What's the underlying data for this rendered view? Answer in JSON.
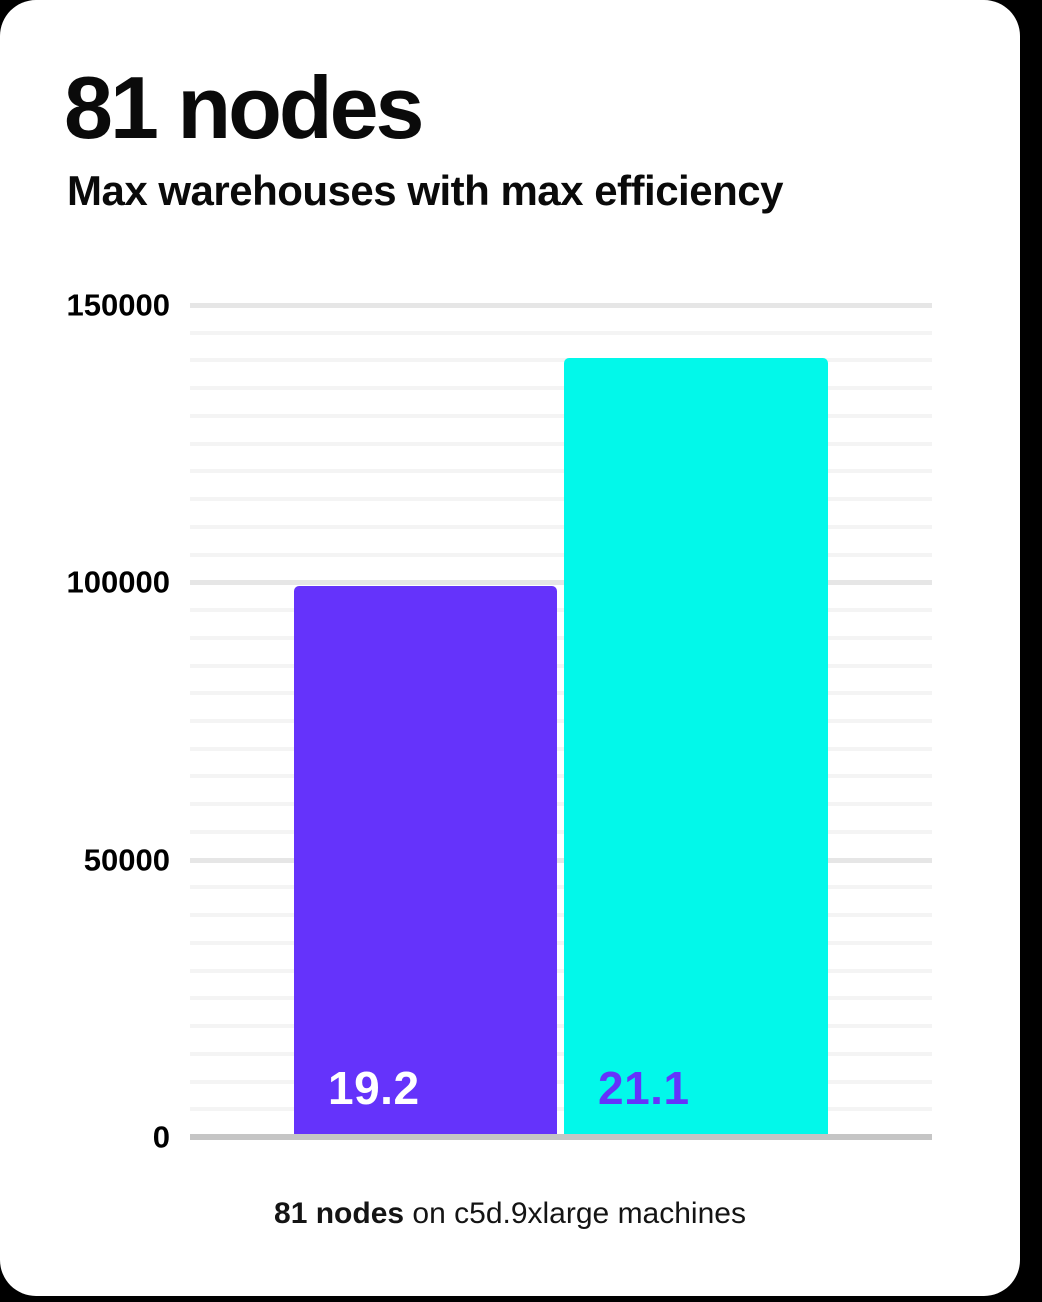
{
  "page": {
    "background_color": "#000000",
    "card_color": "#ffffff"
  },
  "header": {
    "title": "81 nodes",
    "subtitle": "Max warehouses with max efficiency"
  },
  "caption": {
    "bold": "81 nodes",
    "rest": " on c5d.9xlarge machines"
  },
  "chart_data": {
    "type": "bar",
    "title": "81 nodes",
    "subtitle": "Max warehouses with max efficiency",
    "categories": [
      "19.2",
      "21.1"
    ],
    "values": [
      99400,
      140400
    ],
    "bar_labels": [
      "19.2",
      "21.1"
    ],
    "bar_colors": [
      "#6533fb",
      "#02f8ea"
    ],
    "bar_label_colors": [
      "#ffffff",
      "#6533fb"
    ],
    "ylim": [
      0,
      150000
    ],
    "yticks": [
      0,
      50000,
      100000,
      150000
    ],
    "minor_grid_step": 5000,
    "grid": "horizontal",
    "legend": "none",
    "xlabel": "81 nodes on c5d.9xlarge machines",
    "ylabel": "",
    "axis_line_color": "#c5c5c5",
    "major_grid_color": "#e6e6e6",
    "minor_grid_color": "#f4f4f4"
  }
}
